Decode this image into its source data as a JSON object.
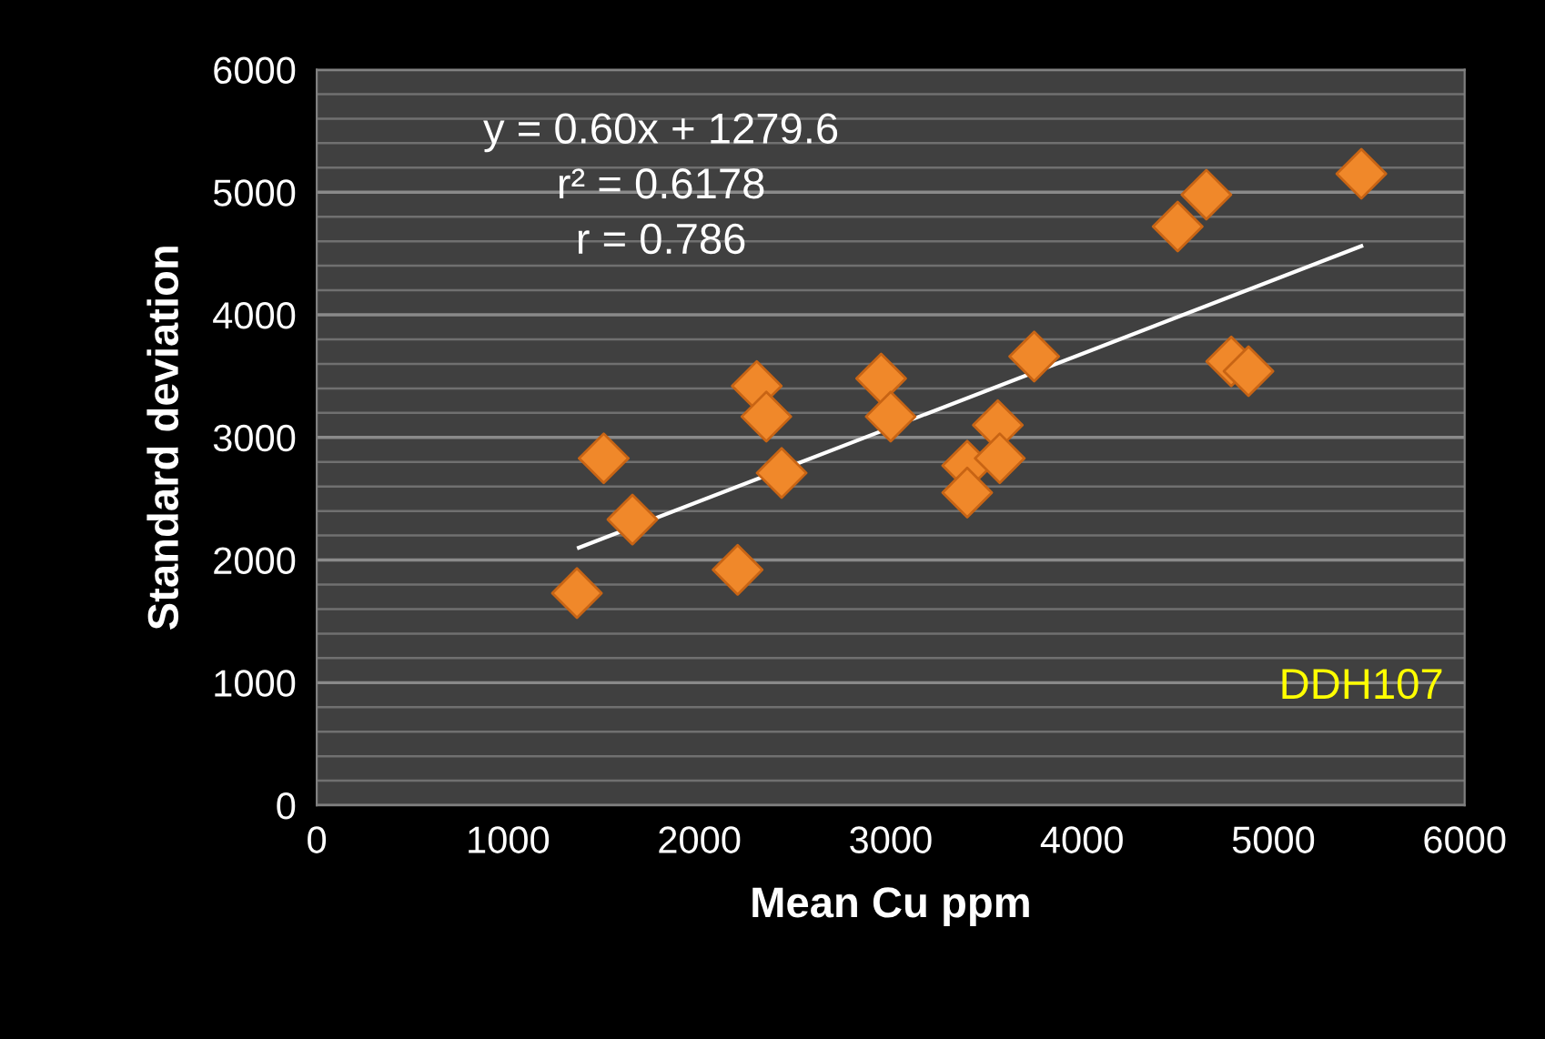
{
  "chart_data": {
    "type": "scatter",
    "xlabel": "Mean Cu ppm",
    "ylabel": "Standard deviation",
    "annotations": [
      "y = 0.60x + 1279.6",
      "r² = 0.6178",
      "r = 0.786",
      "DDH107"
    ],
    "series": [
      {
        "color": "#f0882a",
        "marker": "diamond",
        "x": [
          1360,
          1500,
          1650,
          2200,
          2300,
          2350,
          2430,
          2950,
          3000,
          3400,
          3400,
          3560,
          3570,
          3750,
          4500,
          4650,
          4780,
          4870,
          5460
        ],
        "values": [
          1730,
          2830,
          2330,
          1920,
          3420,
          3170,
          2710,
          3480,
          3170,
          2770,
          2550,
          3100,
          2830,
          3660,
          4720,
          4980,
          3620,
          3540,
          5150
        ]
      },
      {
        "type": "line",
        "color": "#ffffff",
        "marker": "none",
        "x": [
          1370,
          5460
        ],
        "values": [
          2100,
          4560
        ]
      }
    ],
    "xlim": [
      0,
      6000
    ],
    "xticks": [
      0,
      1000,
      2000,
      3000,
      4000,
      5000,
      6000
    ],
    "ylim": [
      0,
      6000
    ],
    "yticks": [
      0,
      {
        "value": 200,
        "label": null
      },
      {
        "value": 400,
        "label": null
      },
      {
        "value": 600,
        "label": null
      },
      {
        "value": 800,
        "label": null
      },
      1000,
      {
        "value": 1200,
        "label": null
      },
      {
        "value": 1400,
        "label": null
      },
      {
        "value": 1600,
        "label": null
      },
      {
        "value": 1800,
        "label": null
      },
      2000,
      {
        "value": 2200,
        "label": null
      },
      {
        "value": 2400,
        "label": null
      },
      {
        "value": 2600,
        "label": null
      },
      {
        "value": 2800,
        "label": null
      },
      3000,
      {
        "value": 3200,
        "label": null
      },
      {
        "value": 3400,
        "label": null
      },
      {
        "value": 3600,
        "label": null
      },
      {
        "value": 3800,
        "label": null
      },
      4000,
      {
        "value": 4200,
        "label": null
      },
      {
        "value": 4400,
        "label": null
      },
      {
        "value": 4600,
        "label": null
      },
      {
        "value": 4800,
        "label": null
      },
      5000,
      {
        "value": 5200,
        "label": null
      },
      {
        "value": 5400,
        "label": null
      },
      {
        "value": 5600,
        "label": null
      },
      {
        "value": 5800,
        "label": null
      },
      6000
    ],
    "grid": "y",
    "legend": false
  }
}
